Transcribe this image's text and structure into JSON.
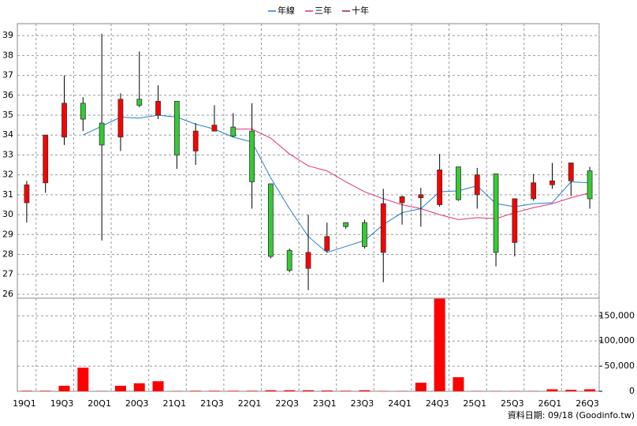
{
  "chart_data": {
    "type": "candlestick",
    "categories": [
      "19Q1",
      null,
      "19Q3",
      null,
      "20Q1",
      null,
      "20Q3",
      null,
      "21Q1",
      null,
      "21Q3",
      null,
      "22Q1",
      null,
      "22Q3",
      null,
      "23Q1",
      null,
      "23Q3",
      null,
      "24Q1",
      null,
      "24Q3",
      null,
      "25Q1",
      null,
      "25Q3",
      null,
      "26Q1",
      null,
      "26Q3"
    ],
    "open": [
      30.6,
      31.6,
      33.9,
      35.6,
      34.6,
      33.9,
      35.8,
      35.0,
      35.7,
      33.2,
      34.2,
      34.4,
      34.2,
      31.55,
      28.2,
      27.3,
      28.2,
      29.6,
      29.6,
      28.1,
      30.6,
      30.85,
      30.5,
      32.4,
      31.0,
      32.05,
      28.6,
      30.8,
      31.5,
      31.7,
      32.2
    ],
    "high": [
      31.7,
      34.0,
      37.0,
      35.9,
      39.1,
      36.1,
      38.2,
      36.5,
      35.7,
      34.6,
      35.5,
      35.1,
      35.6,
      31.55,
      28.3,
      30.0,
      29.6,
      29.6,
      29.75,
      31.3,
      30.95,
      31.35,
      33.05,
      32.4,
      32.35,
      32.05,
      30.8,
      32.05,
      32.6,
      32.6,
      32.4
    ],
    "low": [
      29.6,
      31.1,
      33.5,
      34.2,
      28.7,
      33.2,
      35.4,
      34.8,
      32.3,
      32.5,
      34.2,
      33.9,
      30.3,
      27.8,
      27.1,
      26.2,
      28.1,
      29.3,
      28.3,
      26.6,
      29.5,
      29.4,
      30.4,
      30.7,
      30.3,
      27.4,
      27.9,
      30.7,
      31.3,
      30.95,
      30.3
    ],
    "close": [
      31.5,
      34.0,
      35.6,
      34.8,
      33.5,
      35.8,
      35.5,
      35.7,
      33.0,
      34.2,
      34.5,
      33.95,
      31.65,
      27.9,
      27.2,
      28.1,
      28.9,
      29.4,
      28.4,
      30.55,
      30.9,
      31.0,
      32.25,
      30.75,
      32.0,
      28.1,
      30.8,
      31.6,
      31.7,
      32.6,
      30.8
    ],
    "up_color": "#ff0000",
    "down_color": "#33cc33",
    "series": [
      {
        "name": "年線",
        "color": "#1f7fd0",
        "values": [
          null,
          null,
          null,
          34.0,
          34.45,
          34.9,
          34.85,
          35.0,
          34.9,
          34.55,
          34.3,
          33.9,
          33.65,
          31.85,
          30.3,
          28.9,
          28.1,
          28.4,
          28.7,
          29.5,
          30.1,
          30.3,
          31.15,
          31.2,
          31.45,
          30.55,
          30.4,
          30.55,
          30.6,
          31.65,
          31.6
        ]
      },
      {
        "name": "三年",
        "color": "#e0307a",
        "values": [
          null,
          null,
          null,
          null,
          null,
          null,
          null,
          null,
          null,
          null,
          null,
          34.3,
          34.3,
          33.85,
          33.05,
          32.45,
          32.2,
          31.65,
          31.15,
          30.8,
          30.5,
          30.3,
          30.0,
          29.75,
          29.85,
          29.8,
          30.1,
          30.35,
          30.55,
          30.85,
          31.1
        ]
      },
      {
        "name": "十年",
        "color": "#a0105a",
        "values": [
          null,
          null,
          null,
          null,
          null,
          null,
          null,
          null,
          null,
          null,
          null,
          null,
          null,
          null,
          null,
          null,
          null,
          null,
          null,
          null,
          null,
          null,
          null,
          null,
          null,
          null,
          null,
          null,
          null,
          null,
          null
        ]
      }
    ],
    "ylim": [
      25.8,
      39.6
    ],
    "yticks": [
      26,
      27,
      28,
      29,
      30,
      31,
      32,
      33,
      34,
      35,
      36,
      37,
      38,
      39
    ],
    "volume": {
      "color": "#ff0000",
      "values": [
        1000,
        1000,
        11000,
        47000,
        500,
        11000,
        16000,
        20000,
        500,
        1000,
        1000,
        1000,
        1000,
        2000,
        2000,
        2000,
        1500,
        1000,
        2000,
        500,
        500,
        17000,
        184000,
        28000,
        500,
        500,
        500,
        500,
        4000,
        3000,
        4000
      ],
      "ylim": [
        0,
        185000
      ],
      "yticks": [
        0,
        {
          "value": 50000,
          "label": "50,000"
        },
        {
          "value": 100000,
          "label": "100,000"
        },
        {
          "value": 150000,
          "label": "150,000"
        }
      ]
    },
    "grid": true,
    "footnote": "資料日期: 09/18  (Goodinfo.tw)"
  }
}
